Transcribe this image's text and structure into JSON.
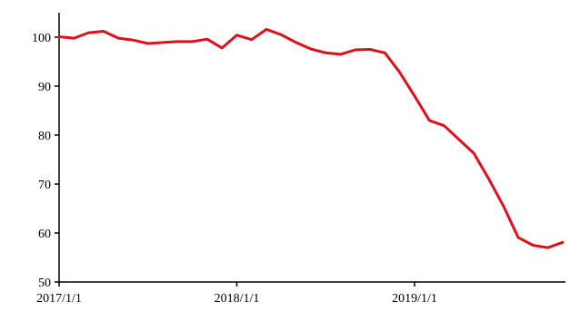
{
  "chart_data": {
    "type": "line",
    "title": "",
    "xlabel": "",
    "ylabel": "",
    "x_tick_labels": [
      "2017/1/1",
      "2018/1/1",
      "2019/1/1"
    ],
    "y_tick_labels": [
      "50",
      "60",
      "70",
      "80",
      "90",
      "100"
    ],
    "y_ticks": [
      50,
      60,
      70,
      80,
      90,
      100
    ],
    "ylim": [
      50,
      105
    ],
    "x_range": [
      "2017-01",
      "2019-09"
    ],
    "grid": false,
    "legend": "none",
    "series": [
      {
        "color": "#d9121b",
        "x": [
          "2017-01",
          "2017-02",
          "2017-03",
          "2017-04",
          "2017-05",
          "2017-06",
          "2017-07",
          "2017-08",
          "2017-09",
          "2017-10",
          "2017-11",
          "2017-12",
          "2018-01",
          "2018-02",
          "2018-03",
          "2018-04",
          "2018-05",
          "2018-06",
          "2018-07",
          "2018-08",
          "2018-09",
          "2018-10",
          "2018-11",
          "2018-12",
          "2019-01",
          "2019-02",
          "2019-03",
          "2019-04",
          "2019-05",
          "2019-06",
          "2019-07",
          "2019-08",
          "2019-09"
        ],
        "values": [
          100.1,
          99.8,
          100.9,
          101.2,
          99.8,
          99.4,
          98.7,
          98.9,
          99.1,
          99.1,
          99.6,
          97.8,
          100.4,
          99.5,
          101.6,
          100.5,
          98.9,
          97.6,
          96.8,
          96.5,
          97.4,
          97.5,
          96.8,
          92.8,
          88.0,
          83.0,
          81.9,
          79.1,
          76.3,
          71.1,
          65.5,
          59.1,
          57.5
        ]
      }
    ],
    "extra_points": {
      "x": [
        "2019-10",
        "2019-11"
      ],
      "values": [
        57.0,
        58.1
      ]
    }
  }
}
